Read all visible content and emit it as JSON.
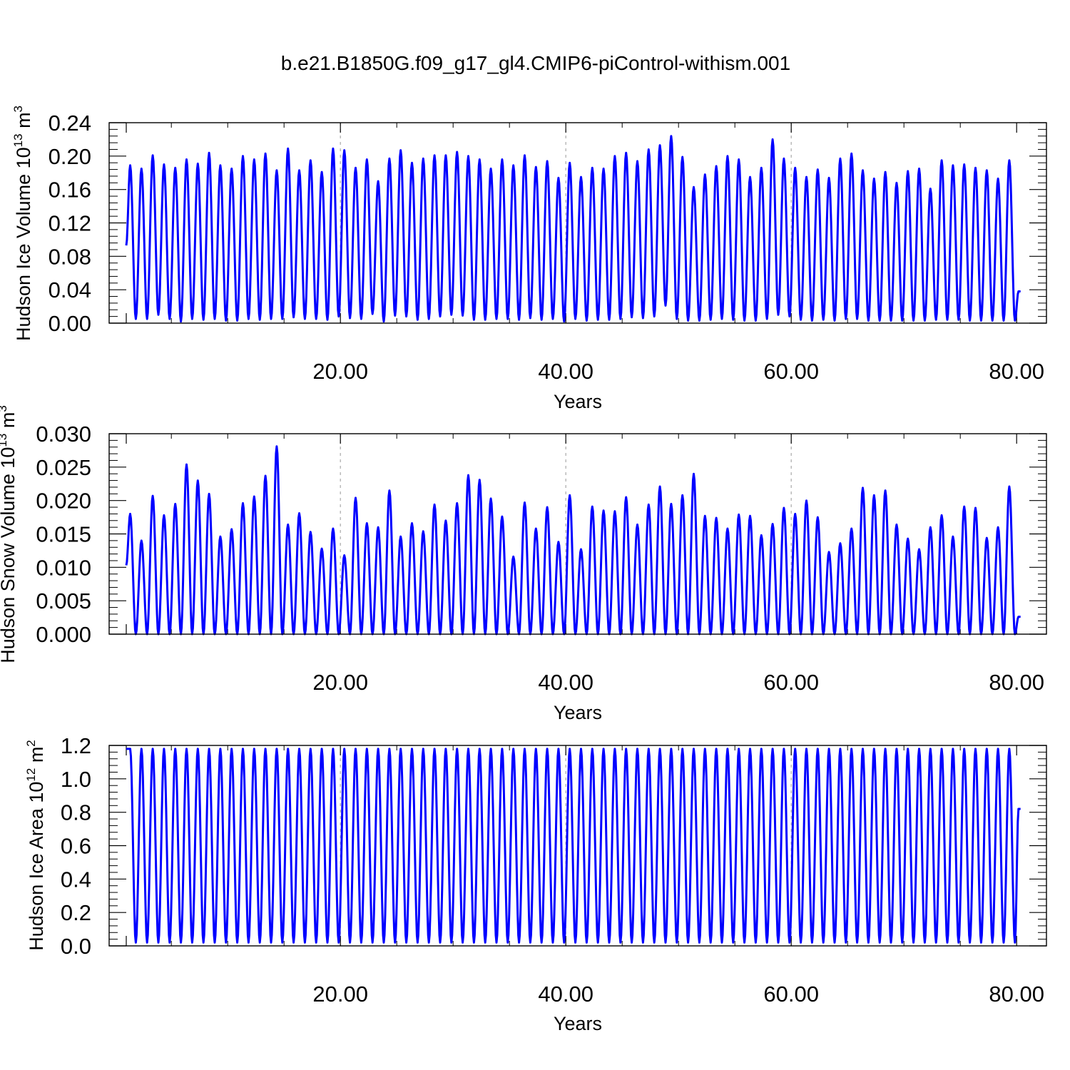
{
  "title": "b.e21.B1850G.f09_g17_gl4.CMIP6-piControl-withism.001",
  "chart_data": [
    {
      "type": "line",
      "ylabel": {
        "text": "Hudson Ice Volume 10",
        "exp": "13",
        "unit": " m",
        "unit_exp": "3"
      },
      "xlabel": "Years",
      "xlim": [
        0.0,
        81.0
      ],
      "ylim": [
        0.0,
        0.24
      ],
      "x_ticks": [
        "20.00",
        "40.00",
        "60.00",
        "80.00"
      ],
      "y_ticks": [
        "0.00",
        "0.04",
        "0.08",
        "0.12",
        "0.16",
        "0.20",
        "0.24"
      ],
      "grid": "vertical dashed at 20, 40, 60",
      "series_color": "#0000ff",
      "start_value": 0.093,
      "end_value": 0.038,
      "annual_max": [
        0.189,
        0.185,
        0.201,
        0.19,
        0.186,
        0.196,
        0.191,
        0.204,
        0.189,
        0.185,
        0.2,
        0.196,
        0.203,
        0.183,
        0.209,
        0.183,
        0.195,
        0.181,
        0.209,
        0.207,
        0.186,
        0.196,
        0.17,
        0.197,
        0.207,
        0.192,
        0.197,
        0.201,
        0.201,
        0.205,
        0.2,
        0.196,
        0.185,
        0.196,
        0.189,
        0.201,
        0.187,
        0.194,
        0.174,
        0.192,
        0.175,
        0.186,
        0.185,
        0.2,
        0.204,
        0.194,
        0.208,
        0.213,
        0.224,
        0.199,
        0.163,
        0.178,
        0.188,
        0.2,
        0.196,
        0.175,
        0.186,
        0.22,
        0.197,
        0.186,
        0.175,
        0.184,
        0.174,
        0.197,
        0.203,
        0.183,
        0.173,
        0.181,
        0.168,
        0.182,
        0.185,
        0.161,
        0.195,
        0.189,
        0.19,
        0.186,
        0.183,
        0.173,
        0.195
      ],
      "annual_min": [
        0.005,
        0.005,
        0.01,
        0.005,
        0.002,
        0.005,
        0.004,
        0.005,
        0.003,
        0.003,
        0.005,
        0.004,
        0.005,
        0.005,
        0.007,
        0.005,
        0.005,
        0.004,
        0.008,
        0.006,
        0.005,
        0.011,
        0.002,
        0.009,
        0.008,
        0.004,
        0.005,
        0.008,
        0.01,
        0.009,
        0.004,
        0.004,
        0.005,
        0.005,
        0.004,
        0.006,
        0.004,
        0.005,
        0.002,
        0.005,
        0.003,
        0.004,
        0.004,
        0.005,
        0.007,
        0.006,
        0.008,
        0.021,
        0.005,
        0.003,
        0.003,
        0.004,
        0.005,
        0.004,
        0.003,
        0.003,
        0.005,
        0.01,
        0.008,
        0.004,
        0.003,
        0.004,
        0.003,
        0.005,
        0.005,
        0.003,
        0.003,
        0.003,
        0.003,
        0.003,
        0.003,
        0.004,
        0.004,
        0.004,
        0.003,
        0.003,
        0.003,
        0.003,
        0.003
      ]
    },
    {
      "type": "line",
      "ylabel": {
        "text": "Hudson Snow Volume 10",
        "exp": "13",
        "unit": " m",
        "unit_exp": "3"
      },
      "xlabel": "Years",
      "xlim": [
        0.0,
        81.0
      ],
      "ylim": [
        0.0,
        0.03
      ],
      "x_ticks": [
        "20.00",
        "40.00",
        "60.00",
        "80.00"
      ],
      "y_ticks": [
        "0.000",
        "0.005",
        "0.010",
        "0.015",
        "0.020",
        "0.025",
        "0.030"
      ],
      "grid": "vertical dashed at 20, 40, 60",
      "series_color": "#0000ff",
      "start_value": 0.0103,
      "end_value": 0.0026,
      "annual_max": [
        0.018,
        0.014,
        0.0207,
        0.0178,
        0.0195,
        0.0254,
        0.023,
        0.021,
        0.0146,
        0.0157,
        0.0196,
        0.0206,
        0.0237,
        0.0281,
        0.0164,
        0.0181,
        0.0153,
        0.0128,
        0.0158,
        0.0118,
        0.0204,
        0.0166,
        0.016,
        0.0215,
        0.0146,
        0.0166,
        0.0154,
        0.0194,
        0.017,
        0.0196,
        0.0238,
        0.0231,
        0.0203,
        0.0176,
        0.0116,
        0.0197,
        0.0158,
        0.019,
        0.0138,
        0.0208,
        0.0127,
        0.0191,
        0.0185,
        0.0184,
        0.0205,
        0.0164,
        0.0194,
        0.0221,
        0.0195,
        0.0208,
        0.024,
        0.0177,
        0.0174,
        0.0158,
        0.0179,
        0.0177,
        0.0148,
        0.0165,
        0.0189,
        0.018,
        0.02,
        0.0175,
        0.0123,
        0.0136,
        0.0158,
        0.0219,
        0.0208,
        0.0215,
        0.0164,
        0.0143,
        0.0127,
        0.016,
        0.0178,
        0.0146,
        0.0191,
        0.0189,
        0.0144,
        0.016,
        0.0221
      ],
      "annual_min": 0.0
    },
    {
      "type": "line",
      "ylabel": {
        "text": "Hudson Ice Area 10",
        "exp": "12",
        "unit": " m",
        "unit_exp": "2"
      },
      "xlabel": "Years",
      "xlim": [
        0.0,
        81.0
      ],
      "ylim": [
        0.0,
        1.2
      ],
      "x_ticks": [
        "20.00",
        "40.00",
        "60.00",
        "80.00"
      ],
      "y_ticks": [
        "0.0",
        "0.2",
        "0.4",
        "0.6",
        "0.8",
        "1.0",
        "1.2"
      ],
      "grid": "vertical dashed at 20, 40, 60",
      "series_color": "#0000ff",
      "start_value": 1.18,
      "end_value": 0.82,
      "annual_max": 1.18,
      "annual_min": 0.02
    }
  ]
}
